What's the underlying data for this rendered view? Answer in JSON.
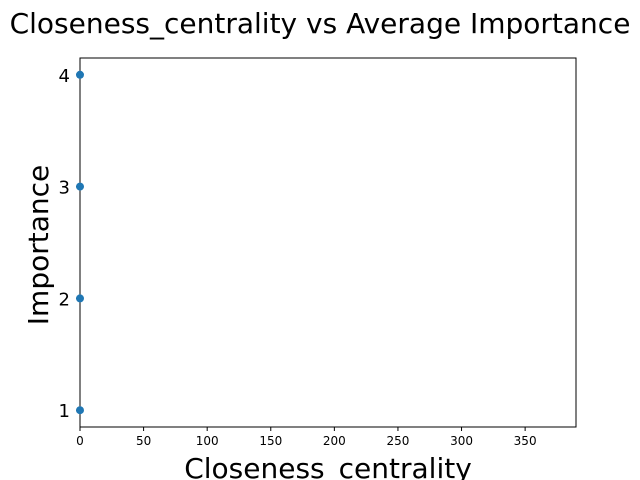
{
  "chart_data": {
    "type": "scatter",
    "title": "Closeness_centrality vs Average Importance",
    "xlabel": "Closeness_centrality",
    "ylabel": "Importance",
    "xlim": [
      0,
      390
    ],
    "ylim": [
      0.85,
      4.15
    ],
    "xticks": [
      0,
      50,
      100,
      150,
      200,
      250,
      300,
      350
    ],
    "yticks": [
      1,
      2,
      3,
      4
    ],
    "grid": false,
    "points": [
      {
        "x": 0,
        "y": 1
      },
      {
        "x": 0,
        "y": 2
      },
      {
        "x": 0,
        "y": 3
      },
      {
        "x": 0,
        "y": 4
      }
    ],
    "marker_color": "#1f77b4"
  }
}
